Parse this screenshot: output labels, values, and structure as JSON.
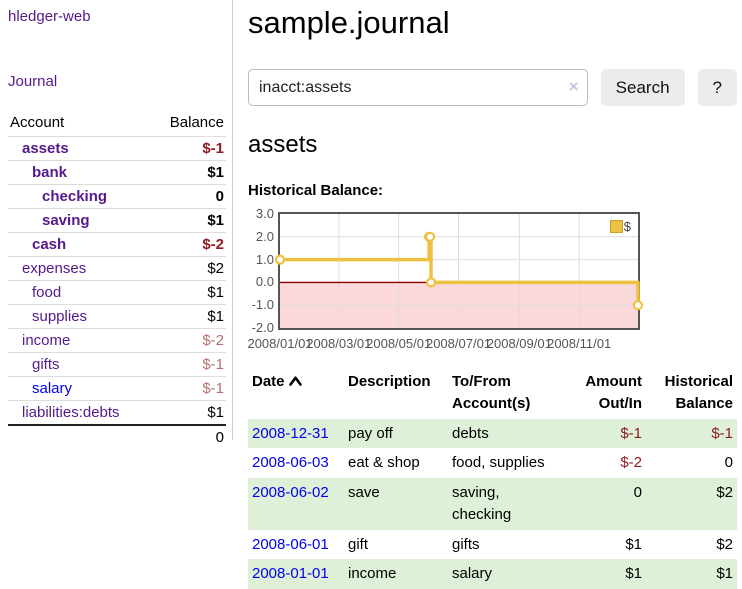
{
  "app": {
    "brand": "hledger-web",
    "nav": {
      "journal": "Journal"
    }
  },
  "sidebar": {
    "header": {
      "account": "Account",
      "balance": "Balance"
    },
    "accounts": [
      {
        "name": "assets",
        "depth": 1,
        "bold": true,
        "link_color": "purple",
        "balance": "$-1",
        "balance_class": "neg-strong"
      },
      {
        "name": "bank",
        "depth": 2,
        "bold": true,
        "link_color": "purple",
        "balance": "$1",
        "balance_class": ""
      },
      {
        "name": "checking",
        "depth": 3,
        "bold": true,
        "link_color": "purple",
        "balance": "0",
        "balance_class": ""
      },
      {
        "name": "saving",
        "depth": 3,
        "bold": true,
        "link_color": "purple",
        "balance": "$1",
        "balance_class": ""
      },
      {
        "name": "cash",
        "depth": 2,
        "bold": true,
        "link_color": "purple",
        "balance": "$-2",
        "balance_class": "neg-strong"
      },
      {
        "name": "expenses",
        "depth": 1,
        "bold": false,
        "link_color": "purple",
        "balance": "$2",
        "balance_class": ""
      },
      {
        "name": "food",
        "depth": 2,
        "bold": false,
        "link_color": "purple",
        "balance": "$1",
        "balance_class": ""
      },
      {
        "name": "supplies",
        "depth": 2,
        "bold": false,
        "link_color": "purple",
        "balance": "$1",
        "balance_class": ""
      },
      {
        "name": "income",
        "depth": 1,
        "bold": false,
        "link_color": "purple",
        "balance": "$-2",
        "balance_class": "neg-weak"
      },
      {
        "name": "gifts",
        "depth": 2,
        "bold": false,
        "link_color": "purple",
        "balance": "$-1",
        "balance_class": "neg-weak"
      },
      {
        "name": "salary",
        "depth": 2,
        "bold": false,
        "link_color": "blue",
        "balance": "$-1",
        "balance_class": "neg-weak"
      },
      {
        "name": "liabilities:debts",
        "depth": 1,
        "bold": false,
        "link_color": "purple",
        "balance": "$1",
        "balance_class": ""
      }
    ],
    "total": "0"
  },
  "main": {
    "title": "sample.journal",
    "search": {
      "value": "inacct:assets",
      "clear_icon": "×",
      "search_button": "Search",
      "help_button": "?"
    },
    "account_heading": "assets",
    "chart_heading": "Historical Balance:"
  },
  "chart_data": {
    "type": "line",
    "step": true,
    "title": "Historical Balance:",
    "series": [
      {
        "name": "$",
        "color": "#edc240",
        "points": [
          [
            "2008-01-01",
            1
          ],
          [
            "2008-06-01",
            2
          ],
          [
            "2008-06-02",
            2
          ],
          [
            "2008-06-03",
            0
          ],
          [
            "2008-12-31",
            -1
          ]
        ]
      }
    ],
    "x_range": [
      "2008-01-01",
      "2008-12-31"
    ],
    "ylim": [
      -2,
      3
    ],
    "y_ticks": [
      3.0,
      2.0,
      1.0,
      0.0,
      -1.0,
      -2.0
    ],
    "x_ticks": [
      "2008/01/01",
      "2008/03/01",
      "2008/05/01",
      "2008/07/01",
      "2008/09/01",
      "2008/11/01"
    ],
    "grid": true,
    "legend": {
      "label": "$",
      "position": "top-right"
    },
    "negative_region_color": "#fbd8da",
    "zero_line_color": "#8b0000"
  },
  "register": {
    "columns": [
      "Date",
      "Description",
      "To/From Account(s)",
      "Amount Out/In",
      "Historical Balance"
    ],
    "rows": [
      {
        "date": "2008-12-31",
        "description": "pay off",
        "accounts": "debts",
        "amount": "$-1",
        "amount_neg": true,
        "balance": "$-1",
        "balance_neg": true,
        "striped": true
      },
      {
        "date": "2008-06-03",
        "description": "eat & shop",
        "accounts": "food, supplies",
        "amount": "$-2",
        "amount_neg": true,
        "balance": "0",
        "balance_neg": false,
        "striped": false
      },
      {
        "date": "2008-06-02",
        "description": "save",
        "accounts": "saving, checking",
        "amount": "0",
        "amount_neg": false,
        "balance": "$2",
        "balance_neg": false,
        "striped": true
      },
      {
        "date": "2008-06-01",
        "description": "gift",
        "accounts": "gifts",
        "amount": "$1",
        "amount_neg": false,
        "balance": "$2",
        "balance_neg": false,
        "striped": false
      },
      {
        "date": "2008-01-01",
        "description": "income",
        "accounts": "salary",
        "amount": "$1",
        "amount_neg": false,
        "balance": "$1",
        "balance_neg": false,
        "striped": true
      }
    ]
  },
  "colors": {
    "link_purple": "#551a8b",
    "link_blue": "#0000ee",
    "negative_strong": "#8f1d21",
    "negative_weak": "#b96f6f",
    "row_stripe_green": "#dff0d8",
    "chart_line_gold": "#edc240",
    "chart_negative_pink": "#fbd8da",
    "chart_zero_line": "#8b0000"
  }
}
